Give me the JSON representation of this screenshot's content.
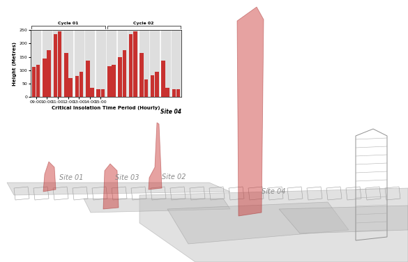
{
  "chart_data": {
    "type": "bar",
    "ylabel": "Height (Metres)",
    "xlabel": "Critical Insolation Time Period (Hourly)",
    "annotations": [
      "Site 04"
    ],
    "groups": [
      {
        "label": "Cycle 01",
        "start": 0,
        "end": 6
      },
      {
        "label": "Cycle 02",
        "start": 7,
        "end": 13
      }
    ],
    "categories": [
      "09:00",
      "10:00",
      "11:00",
      "12:00",
      "13:00",
      "14:00",
      "15:00",
      null,
      null,
      null,
      null,
      null,
      null,
      null
    ],
    "series": [
      {
        "color": "#c8312f",
        "values": [
          112,
          145,
          235,
          165,
          78,
          135,
          30,
          115,
          150,
          235,
          165,
          80,
          135,
          30
        ]
      },
      {
        "color": "#c8312f",
        "values": [
          120,
          175,
          245,
          70,
          95,
          35,
          28,
          120,
          175,
          245,
          65,
          95,
          35,
          28
        ]
      }
    ],
    "ylim": [
      0,
      250
    ],
    "yticks": [
      0,
      50,
      100,
      150,
      200,
      250
    ],
    "grid": false
  },
  "diagram": {
    "labels": [
      "Site 01",
      "Site 03",
      "Site 02",
      "Site 04"
    ]
  }
}
